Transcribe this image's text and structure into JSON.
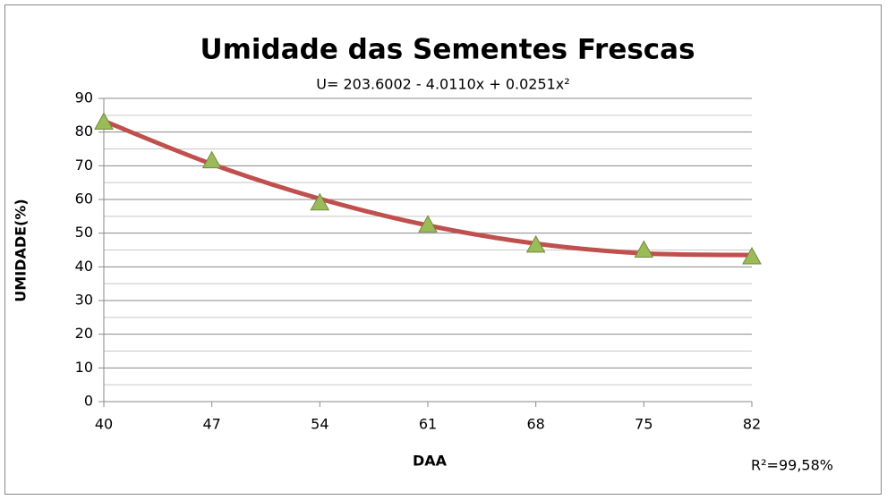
{
  "chart_data": {
    "type": "line",
    "title": "Umidade das Sementes Frescas",
    "subtitle": "U= 203.6002 - 4.0110x + 0.0251x²",
    "annotation": "R²=99,58%",
    "xlabel": "DAA",
    "ylabel": "UMIDADE(%)",
    "x": [
      40,
      47,
      54,
      61,
      68,
      75,
      82
    ],
    "series": [
      {
        "color": "#c0504d",
        "style": "curve",
        "values": [
          83.3,
          70.5,
          60.2,
          52.3,
          46.9,
          44.0,
          43.5
        ]
      },
      {
        "color": "#9bbb59",
        "style": "triangle",
        "values": [
          83,
          71.5,
          59,
          52.5,
          46.5,
          45,
          43
        ]
      }
    ],
    "xlim": [
      40,
      82
    ],
    "xticks": [
      40,
      47,
      54,
      61,
      68,
      75,
      82
    ],
    "ylim": [
      0,
      90
    ],
    "yticks": [
      0,
      10,
      20,
      30,
      40,
      50,
      60,
      70,
      80,
      90
    ],
    "yminorticks": [
      5,
      15,
      25,
      35,
      45,
      55,
      65,
      75,
      85
    ],
    "grid": true
  }
}
